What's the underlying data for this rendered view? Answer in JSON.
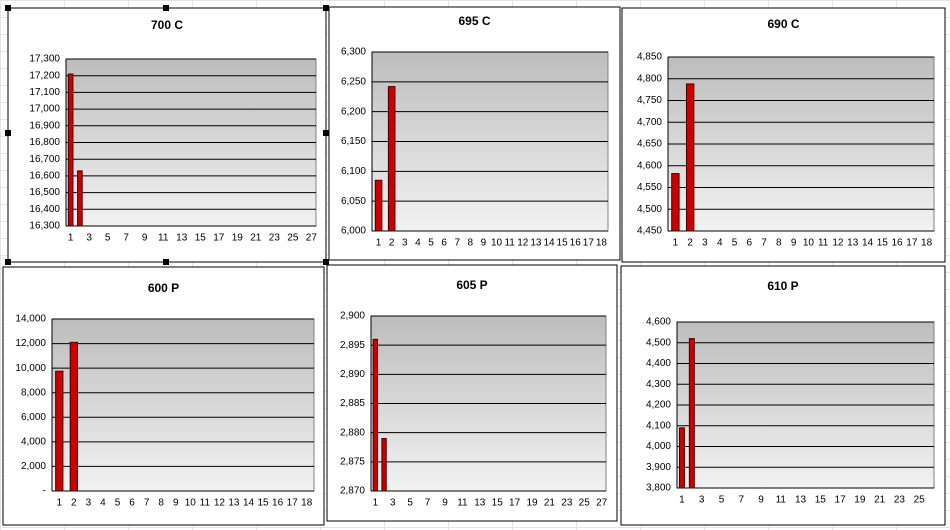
{
  "chart_data": [
    {
      "type": "bar",
      "title": "700 C",
      "color": "#cc0000",
      "grid": true,
      "categories": [
        "1",
        null,
        "3",
        null,
        "5",
        null,
        "7",
        null,
        "9",
        null,
        "11",
        null,
        "13",
        null,
        "15",
        null,
        "17",
        null,
        "19",
        null,
        "21",
        null,
        "23",
        null,
        "25",
        null,
        "27"
      ],
      "values": [
        17210,
        16630,
        null,
        null,
        null,
        null,
        null,
        null,
        null,
        null,
        null,
        null,
        null,
        null,
        null,
        null,
        null,
        null,
        null,
        null,
        null,
        null,
        null,
        null,
        null,
        null,
        null
      ],
      "ylim": [
        16300,
        17300
      ],
      "yticks": [
        {
          "value": 16300,
          "label": "16,300"
        },
        {
          "value": 16400,
          "label": "16,400"
        },
        {
          "value": 16500,
          "label": "16,500"
        },
        {
          "value": 16600,
          "label": "16,600"
        },
        {
          "value": 16700,
          "label": "16,700"
        },
        {
          "value": 16800,
          "label": "16,800"
        },
        {
          "value": 16900,
          "label": "16,900"
        },
        {
          "value": 17000,
          "label": "17,000"
        },
        {
          "value": 17100,
          "label": "17,100"
        },
        {
          "value": 17200,
          "label": "17,200"
        },
        {
          "value": 17300,
          "label": "17,300"
        }
      ]
    },
    {
      "type": "bar",
      "title": "695 C",
      "color": "#cc0000",
      "grid": true,
      "categories": [
        "1",
        "2",
        "3",
        "4",
        "5",
        "6",
        "7",
        "8",
        "9",
        "10",
        "11",
        "12",
        "13",
        "14",
        "15",
        "16",
        "17",
        "18"
      ],
      "values": [
        6085,
        6242,
        null,
        null,
        null,
        null,
        null,
        null,
        null,
        null,
        null,
        null,
        null,
        null,
        null,
        null,
        null,
        null
      ],
      "ylim": [
        6000,
        6300
      ],
      "yticks": [
        {
          "value": 6000,
          "label": "6,000"
        },
        {
          "value": 6050,
          "label": "6,050"
        },
        {
          "value": 6100,
          "label": "6,100"
        },
        {
          "value": 6150,
          "label": "6,150"
        },
        {
          "value": 6200,
          "label": "6,200"
        },
        {
          "value": 6250,
          "label": "6,250"
        },
        {
          "value": 6300,
          "label": "6,300"
        }
      ]
    },
    {
      "type": "bar",
      "title": "690 C",
      "color": "#cc0000",
      "grid": true,
      "categories": [
        "1",
        "2",
        "3",
        "4",
        "5",
        "6",
        "7",
        "8",
        "9",
        "10",
        "11",
        "12",
        "13",
        "14",
        "15",
        "16",
        "17",
        "18"
      ],
      "values": [
        4582,
        4788,
        null,
        null,
        null,
        null,
        null,
        null,
        null,
        null,
        null,
        null,
        null,
        null,
        null,
        null,
        null,
        null
      ],
      "ylim": [
        4450,
        4850
      ],
      "yticks": [
        {
          "value": 4450,
          "label": "4,450"
        },
        {
          "value": 4500,
          "label": "4,500"
        },
        {
          "value": 4550,
          "label": "4,550"
        },
        {
          "value": 4600,
          "label": "4,600"
        },
        {
          "value": 4650,
          "label": "4,650"
        },
        {
          "value": 4700,
          "label": "4,700"
        },
        {
          "value": 4750,
          "label": "4,750"
        },
        {
          "value": 4800,
          "label": "4,800"
        },
        {
          "value": 4850,
          "label": "4,850"
        }
      ]
    },
    {
      "type": "bar",
      "title": "600 P",
      "color": "#cc0000",
      "grid": true,
      "categories": [
        "1",
        "2",
        "3",
        "4",
        "5",
        "6",
        "7",
        "8",
        "9",
        "10",
        "11",
        "12",
        "13",
        "14",
        "15",
        "16",
        "17",
        "18"
      ],
      "values": [
        9750,
        12100,
        null,
        null,
        null,
        null,
        null,
        null,
        null,
        null,
        null,
        null,
        null,
        null,
        null,
        null,
        null,
        null
      ],
      "ylim": [
        0,
        14000
      ],
      "yticks": [
        {
          "value": 0,
          "label": "-"
        },
        {
          "value": 2000,
          "label": "2,000"
        },
        {
          "value": 4000,
          "label": "4,000"
        },
        {
          "value": 6000,
          "label": "6,000"
        },
        {
          "value": 8000,
          "label": "8,000"
        },
        {
          "value": 10000,
          "label": "10,000"
        },
        {
          "value": 12000,
          "label": "12,000"
        },
        {
          "value": 14000,
          "label": "14,000"
        }
      ]
    },
    {
      "type": "bar",
      "title": "605 P",
      "color": "#cc0000",
      "grid": true,
      "categories": [
        "1",
        null,
        "3",
        null,
        "5",
        null,
        "7",
        null,
        "9",
        null,
        "11",
        null,
        "13",
        null,
        "15",
        null,
        "17",
        null,
        "19",
        null,
        "21",
        null,
        "23",
        null,
        "25",
        null,
        "27"
      ],
      "values": [
        2896,
        2879,
        null,
        null,
        null,
        null,
        null,
        null,
        null,
        null,
        null,
        null,
        null,
        null,
        null,
        null,
        null,
        null,
        null,
        null,
        null,
        null,
        null,
        null,
        null,
        null,
        null
      ],
      "ylim": [
        2870,
        2900
      ],
      "yticks": [
        {
          "value": 2870,
          "label": "2,870"
        },
        {
          "value": 2875,
          "label": "2,875"
        },
        {
          "value": 2880,
          "label": "2,880"
        },
        {
          "value": 2885,
          "label": "2,885"
        },
        {
          "value": 2890,
          "label": "2,890"
        },
        {
          "value": 2895,
          "label": "2,895"
        },
        {
          "value": 2900,
          "label": "2,900"
        }
      ]
    },
    {
      "type": "bar",
      "title": "610 P",
      "color": "#cc0000",
      "grid": true,
      "categories": [
        "1",
        null,
        "3",
        null,
        "5",
        null,
        "7",
        null,
        "9",
        null,
        "11",
        null,
        "13",
        null,
        "15",
        null,
        "17",
        null,
        "19",
        null,
        "21",
        null,
        "23",
        null,
        "25",
        null
      ],
      "values": [
        4090,
        4520,
        null,
        null,
        null,
        null,
        null,
        null,
        null,
        null,
        null,
        null,
        null,
        null,
        null,
        null,
        null,
        null,
        null,
        null,
        null,
        null,
        null,
        null,
        null,
        null
      ],
      "ylim": [
        3800,
        4600
      ],
      "yticks": [
        {
          "value": 3800,
          "label": "3,800"
        },
        {
          "value": 3900,
          "label": "3,900"
        },
        {
          "value": 4000,
          "label": "4,000"
        },
        {
          "value": 4100,
          "label": "4,100"
        },
        {
          "value": 4200,
          "label": "4,200"
        },
        {
          "value": 4300,
          "label": "4,300"
        },
        {
          "value": 4400,
          "label": "4,400"
        },
        {
          "value": 4500,
          "label": "4,500"
        },
        {
          "value": 4600,
          "label": "4,600"
        }
      ]
    }
  ]
}
